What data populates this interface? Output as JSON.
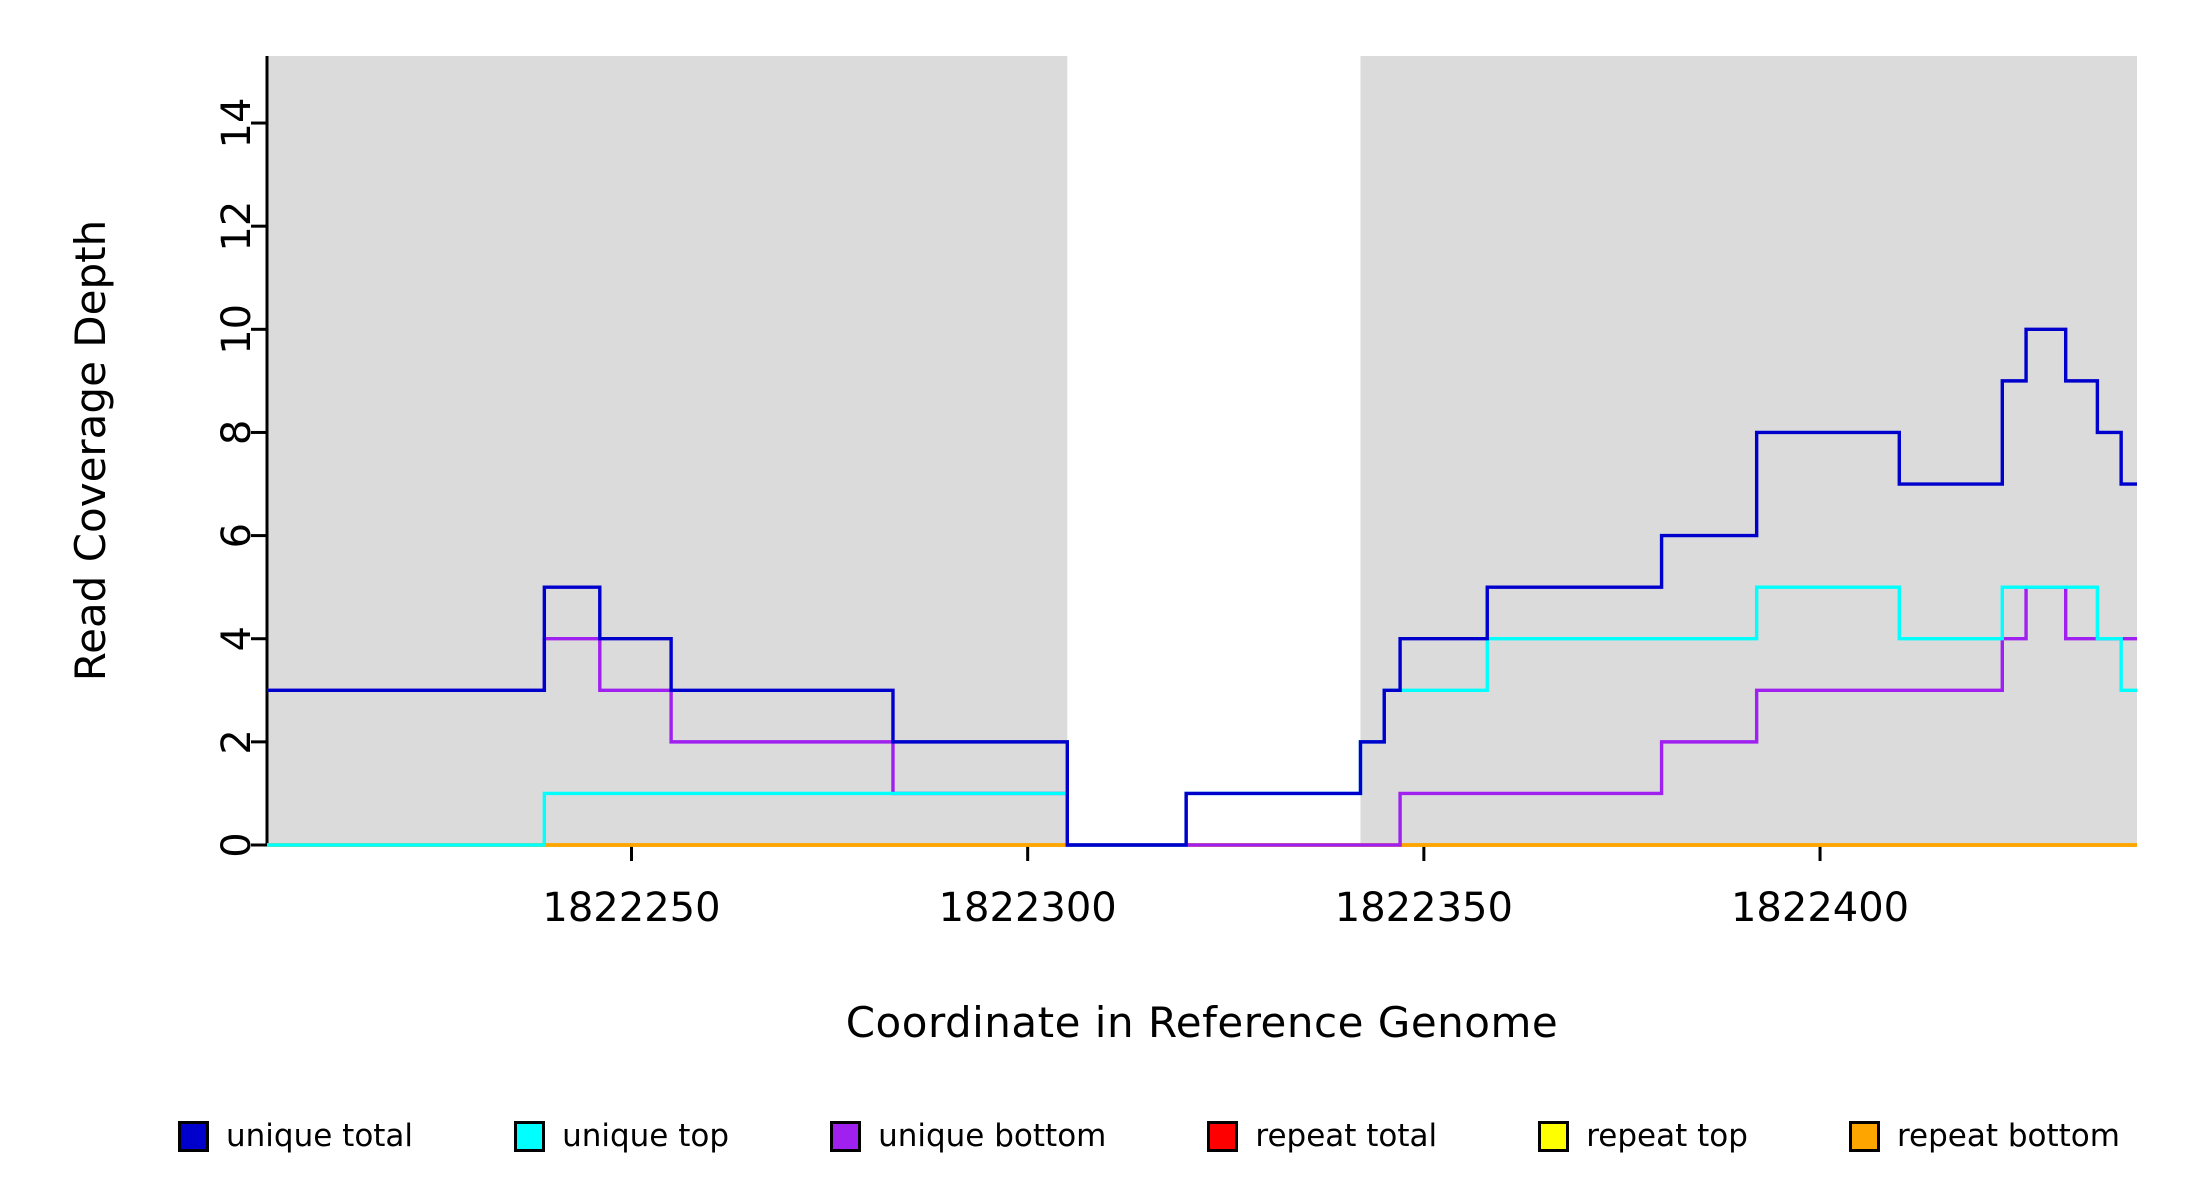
{
  "chart_data": {
    "type": "line",
    "subtype": "step",
    "title": "",
    "xlabel": "Coordinate in Reference Genome",
    "ylabel": "Read Coverage Depth",
    "xlim": [
      1822204,
      1822440
    ],
    "ylim": [
      0,
      15.3
    ],
    "xticks": [
      1822250,
      1822300,
      1822350,
      1822400
    ],
    "xtick_labels": [
      "1822250",
      "1822300",
      "1822350",
      "1822400"
    ],
    "yticks": [
      0,
      2,
      4,
      6,
      8,
      10,
      12,
      14
    ],
    "ytick_labels": [
      "0",
      "2",
      "4",
      "6",
      "8",
      "10",
      "12",
      "14"
    ],
    "grid": false,
    "legend_position": "bottom",
    "plot_background": "#FFFFFF",
    "shaded_region_color": "#DBDBDB",
    "axis_color": "#000000",
    "background_regions": [
      {
        "name": "left-shaded-region",
        "x0": 1822204,
        "x1": 1822305
      },
      {
        "name": "right-shaded-region",
        "x0": 1822342,
        "x1": 1822440
      }
    ],
    "draw_order": [
      3,
      4,
      5,
      2,
      1,
      0
    ],
    "series": [
      {
        "name": "unique total",
        "color": "#0000CD",
        "points": [
          [
            1822204,
            3
          ],
          [
            1822239,
            5
          ],
          [
            1822246,
            4
          ],
          [
            1822255,
            3
          ],
          [
            1822283,
            2
          ],
          [
            1822305,
            0
          ],
          [
            1822320,
            1
          ],
          [
            1822342,
            2
          ],
          [
            1822345,
            3
          ],
          [
            1822347,
            4
          ],
          [
            1822358,
            5
          ],
          [
            1822380,
            6
          ],
          [
            1822392,
            8
          ],
          [
            1822410,
            7
          ],
          [
            1822423,
            9
          ],
          [
            1822426,
            10
          ],
          [
            1822431,
            9
          ],
          [
            1822435,
            8
          ],
          [
            1822438,
            7
          ],
          [
            1822440,
            7
          ]
        ]
      },
      {
        "name": "unique top",
        "color": "#00FFFF",
        "points": [
          [
            1822204,
            0
          ],
          [
            1822239,
            1
          ],
          [
            1822305,
            0
          ],
          [
            1822320,
            1
          ],
          [
            1822342,
            2
          ],
          [
            1822345,
            3
          ],
          [
            1822358,
            4
          ],
          [
            1822392,
            5
          ],
          [
            1822410,
            4
          ],
          [
            1822423,
            5
          ],
          [
            1822435,
            4
          ],
          [
            1822438,
            3
          ],
          [
            1822440,
            3
          ]
        ]
      },
      {
        "name": "unique bottom",
        "color": "#A020F0",
        "points": [
          [
            1822204,
            3
          ],
          [
            1822239,
            4
          ],
          [
            1822246,
            3
          ],
          [
            1822255,
            2
          ],
          [
            1822283,
            1
          ],
          [
            1822305,
            0
          ],
          [
            1822347,
            1
          ],
          [
            1822380,
            2
          ],
          [
            1822392,
            3
          ],
          [
            1822423,
            4
          ],
          [
            1822426,
            5
          ],
          [
            1822431,
            4
          ],
          [
            1822440,
            4
          ]
        ]
      },
      {
        "name": "repeat total",
        "color": "#FF0000",
        "points": [
          [
            1822204,
            0
          ],
          [
            1822440,
            0
          ]
        ]
      },
      {
        "name": "repeat top",
        "color": "#FFFF00",
        "points": [
          [
            1822204,
            0
          ],
          [
            1822440,
            0
          ]
        ]
      },
      {
        "name": "repeat bottom",
        "color": "#FFA500",
        "points": [
          [
            1822204,
            0
          ],
          [
            1822440,
            0
          ]
        ]
      }
    ]
  }
}
